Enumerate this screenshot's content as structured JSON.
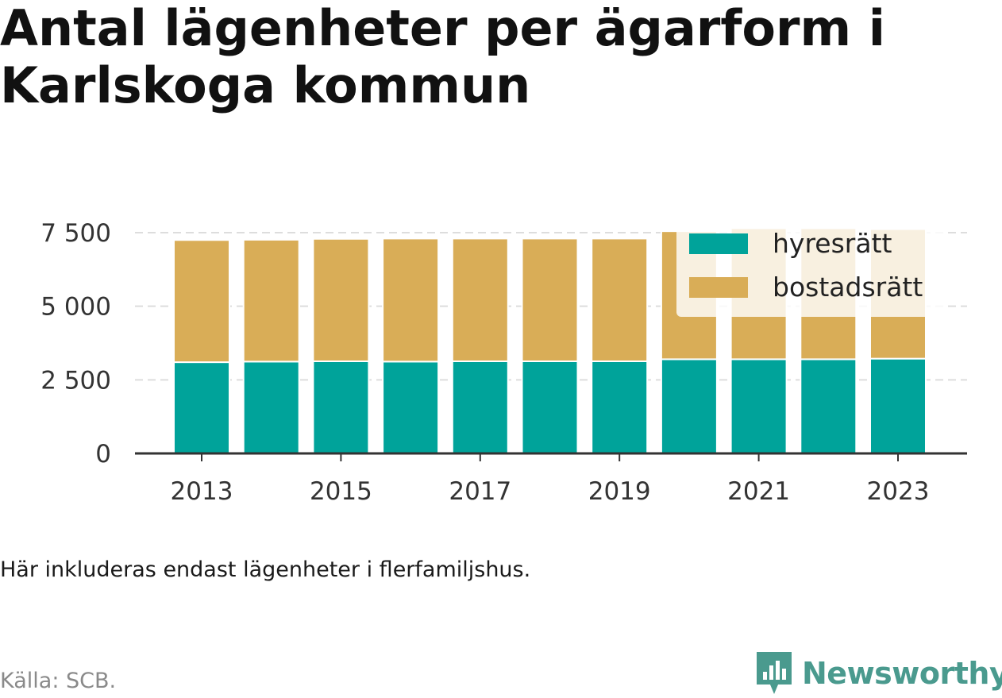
{
  "title": "Antal lägenheter per ägarform i Karlskoga kommun",
  "note": "Här inkluderas endast lägenheter i flerfamiljshus.",
  "source": "Källa: SCB.",
  "logo_text": "Newsworthy",
  "colors": {
    "hyresratt": "#00a39a",
    "bostadsratt": "#d9ad57",
    "logo": "#4a9a8e"
  },
  "chart_data": {
    "type": "bar",
    "stacked": true,
    "categories": [
      "2013",
      "2014",
      "2015",
      "2016",
      "2017",
      "2018",
      "2019",
      "2020",
      "2021",
      "2022",
      "2023"
    ],
    "x_tick_labels": [
      "2013",
      "2015",
      "2017",
      "2019",
      "2021",
      "2023"
    ],
    "series": [
      {
        "name": "hyresrätt",
        "color": "#00a39a",
        "values": [
          3100,
          3120,
          3130,
          3120,
          3130,
          3130,
          3130,
          3200,
          3200,
          3200,
          3220
        ]
      },
      {
        "name": "bostadsrätt",
        "color": "#d9ad57",
        "values": [
          4150,
          4140,
          4160,
          4180,
          4170,
          4170,
          4170,
          4350,
          4450,
          4450,
          4400
        ]
      }
    ],
    "y_ticks": [
      0,
      2500,
      5000,
      7500
    ],
    "y_tick_labels": [
      "0",
      "2 500",
      "5 000",
      "7 500"
    ],
    "ylim": [
      0,
      7500
    ],
    "grid": true,
    "legend": "top-right"
  }
}
